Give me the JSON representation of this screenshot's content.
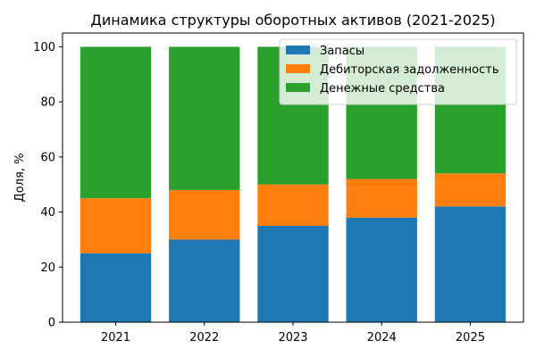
{
  "chart_data": {
    "type": "bar",
    "stacked": true,
    "title": "Динамика структуры оборотных активов (2021-2025)",
    "xlabel": "",
    "ylabel": "Доля, %",
    "categories": [
      "2021",
      "2022",
      "2023",
      "2024",
      "2025"
    ],
    "ylim": [
      0,
      105
    ],
    "yticks": [
      0,
      20,
      40,
      60,
      80,
      100
    ],
    "grid": false,
    "legend_position": "top-right",
    "series": [
      {
        "name": "Запасы",
        "color": "#1f77b4",
        "values": [
          25,
          30,
          35,
          38,
          42
        ]
      },
      {
        "name": "Дебиторская задолженность",
        "color": "#ff7f0e",
        "values": [
          20,
          18,
          15,
          14,
          12
        ]
      },
      {
        "name": "Денежные средства",
        "color": "#2ca02c",
        "values": [
          55,
          52,
          50,
          48,
          46
        ]
      }
    ]
  }
}
